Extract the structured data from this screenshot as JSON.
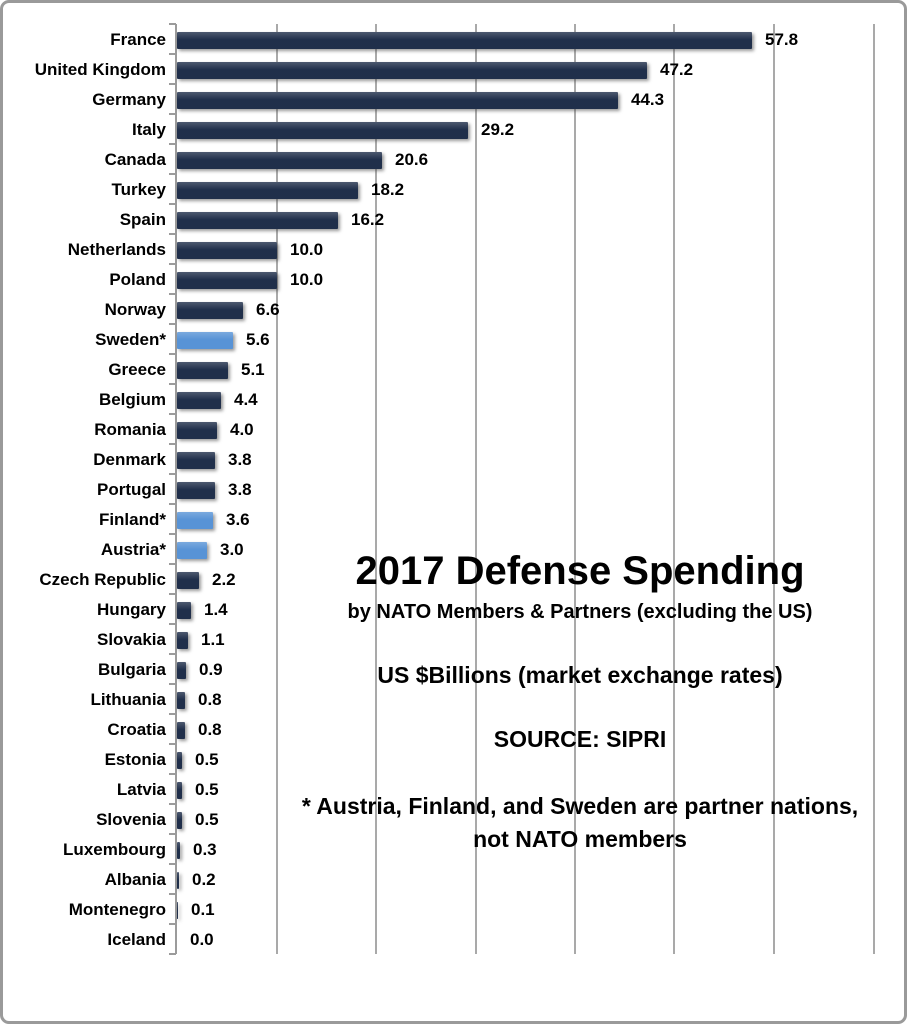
{
  "frame": {
    "background": "#ffffff",
    "border_color": "#9a9a9a"
  },
  "chart_data": {
    "type": "bar",
    "orientation": "horizontal",
    "title": "2017 Defense Spending",
    "subtitle": "by NATO Members & Partners (excluding the US)",
    "units_label": "US $Billions (market exchange rates)",
    "source_label": "SOURCE: SIPRI",
    "footnote_line1": "* Austria, Finland, and Sweden are partner nations,",
    "footnote_line2": "not NATO members",
    "categories": [
      "France",
      "United Kingdom",
      "Germany",
      "Italy",
      "Canada",
      "Turkey",
      "Spain",
      "Netherlands",
      "Poland",
      "Norway",
      "Sweden*",
      "Greece",
      "Belgium",
      "Romania",
      "Denmark",
      "Portugal",
      "Finland*",
      "Austria*",
      "Czech Republic",
      "Hungary",
      "Slovakia",
      "Bulgaria",
      "Lithuania",
      "Croatia",
      "Estonia",
      "Latvia",
      "Slovenia",
      "Luxembourg",
      "Albania",
      "Montenegro",
      "Iceland"
    ],
    "values": [
      57.8,
      47.2,
      44.3,
      29.2,
      20.6,
      18.2,
      16.2,
      10.0,
      10.0,
      6.6,
      5.6,
      5.1,
      4.4,
      4.0,
      3.8,
      3.8,
      3.6,
      3.0,
      2.2,
      1.4,
      1.1,
      0.9,
      0.8,
      0.8,
      0.5,
      0.5,
      0.5,
      0.3,
      0.2,
      0.1,
      0.0
    ],
    "value_labels": [
      "57.8",
      "47.2",
      "44.3",
      "29.2",
      "20.6",
      "18.2",
      "16.2",
      "10.0",
      "10.0",
      "6.6",
      "5.6",
      "5.1",
      "4.4",
      "4.0",
      "3.8",
      "3.8",
      "3.6",
      "3.0",
      "2.2",
      "1.4",
      "1.1",
      "0.9",
      "0.8",
      "0.8",
      "0.5",
      "0.5",
      "0.5",
      "0.3",
      "0.2",
      "0.1",
      "0.0"
    ],
    "partner_indices": [
      10,
      16,
      17
    ],
    "colors": {
      "member_bar": "#1c2b47",
      "partner_bar": "#5591d5",
      "gridline": "#a9a9a9",
      "axis": "#9b9b9b",
      "label_text": "#000000"
    },
    "xlim": [
      0,
      70
    ],
    "gridline_interval": 10,
    "grid": true,
    "legend": "none",
    "value_label_position": "outside-end",
    "x_tick_labels_shown": false
  }
}
